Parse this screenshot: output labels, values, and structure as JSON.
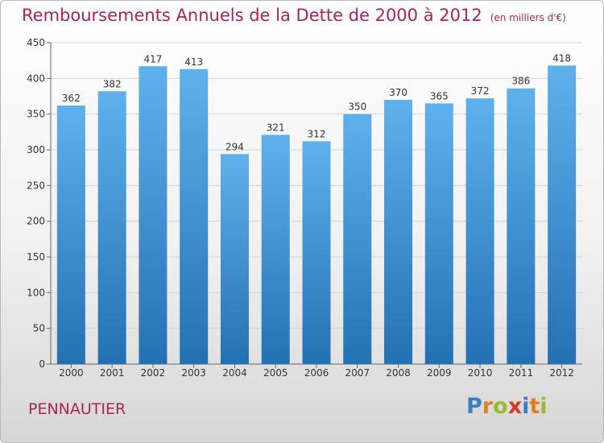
{
  "chart_data": {
    "type": "bar",
    "title": "Remboursements Annuels de la Dette de 2000 à 2012",
    "unit_note": "(en milliers d'€)",
    "categories": [
      "2000",
      "2001",
      "2002",
      "2003",
      "2004",
      "2005",
      "2006",
      "2007",
      "2008",
      "2009",
      "2010",
      "2011",
      "2012"
    ],
    "values": [
      362,
      382,
      417,
      413,
      294,
      321,
      312,
      350,
      370,
      365,
      372,
      386,
      418
    ],
    "ylim": [
      0,
      450
    ],
    "yticks": [
      0,
      50,
      100,
      150,
      200,
      250,
      300,
      350,
      400,
      450
    ],
    "grid": true,
    "bar_color": "#3d8fd6"
  },
  "footer": {
    "place": "PENNAUTIER",
    "logo": [
      {
        "ch": "P",
        "color": "#3a7fc4"
      },
      {
        "ch": "r",
        "color": "#e77d1f"
      },
      {
        "ch": "o",
        "color": "#9bbb2e"
      },
      {
        "ch": "x",
        "color": "#d83a2a"
      },
      {
        "ch": "i",
        "color": "#3a7fc4"
      },
      {
        "ch": "t",
        "color": "#e77d1f"
      },
      {
        "ch": "i",
        "color": "#9bbb2e"
      }
    ]
  }
}
